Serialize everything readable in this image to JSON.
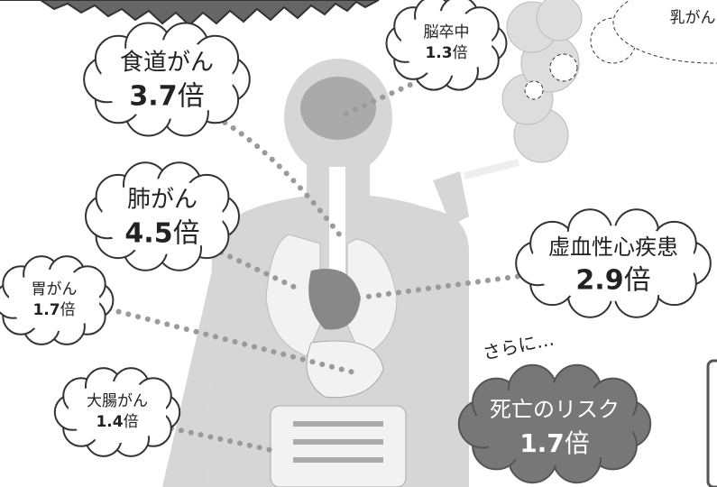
{
  "items": [
    {
      "name": "食道がん",
      "value": "3.7",
      "unit": "倍"
    },
    {
      "name": "脳卒中",
      "value": "1.3",
      "unit": "倍"
    },
    {
      "name": "肺がん",
      "value": "4.5",
      "unit": "倍"
    },
    {
      "name": "虚血性心疾患",
      "value": "2.9",
      "unit": "倍"
    },
    {
      "name": "胃がん",
      "value": "1.7",
      "unit": "倍"
    },
    {
      "name": "大腸がん",
      "value": "1.4",
      "unit": "倍"
    }
  ],
  "partial_item": {
    "name": "乳がん"
  },
  "intro": "さらに…",
  "death_risk": {
    "name": "死亡のリスク",
    "value": "1.7",
    "unit": "倍"
  }
}
